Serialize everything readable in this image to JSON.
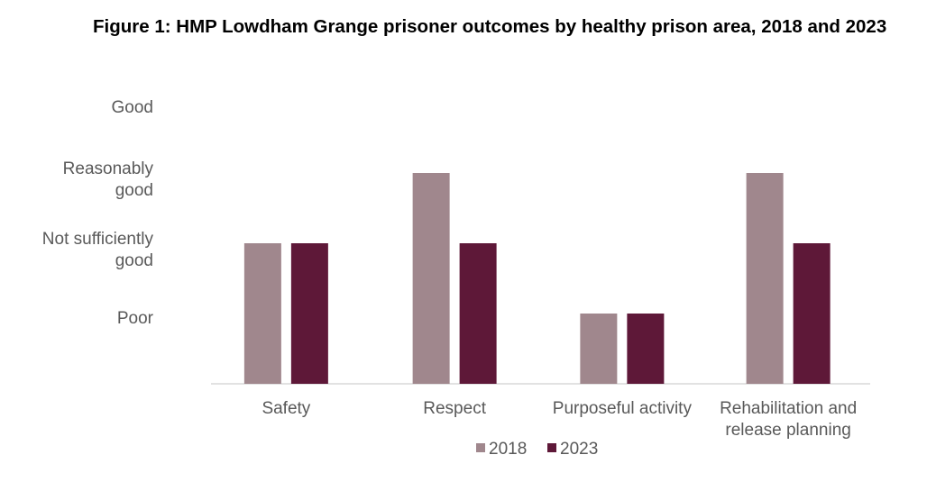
{
  "chart_data": {
    "type": "bar",
    "title": "Figure 1: HMP Lowdham Grange prisoner outcomes by healthy prison area, 2018 and 2023",
    "categories": [
      [
        "Safety"
      ],
      [
        "Respect"
      ],
      [
        "Purposeful activity"
      ],
      [
        "Rehabilitation and",
        "release planning"
      ]
    ],
    "y_tick_labels": [
      [
        "Poor"
      ],
      [
        "Not sufficiently",
        "good"
      ],
      [
        "Reasonably",
        "good"
      ],
      [
        "Good"
      ]
    ],
    "y_tick_values": [
      1,
      2,
      3,
      4
    ],
    "ylim": [
      0,
      4
    ],
    "grid": false,
    "legend_position": "bottom",
    "series": [
      {
        "name": "2018",
        "color": "#a0878d",
        "values": [
          2,
          3,
          1,
          3
        ]
      },
      {
        "name": "2023",
        "color": "#5e1838",
        "values": [
          2,
          2,
          1,
          2
        ]
      }
    ]
  }
}
